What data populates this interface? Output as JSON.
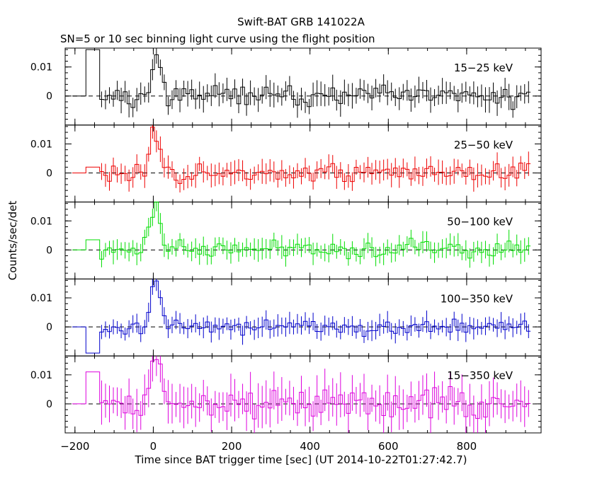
{
  "chart_data": {
    "type": "line",
    "title": "Swift-BAT GRB 141022A",
    "subtitle": "SN=5 or 10 sec binning light curve using the flight position",
    "xlabel": "Time since BAT trigger time [sec] (UT 2014-10-22T01:27:42.7)",
    "ylabel": "Counts/sec/det",
    "xlim": [
      -225,
      990
    ],
    "x_ticks": [
      -200,
      0,
      200,
      400,
      600,
      800
    ],
    "x_tick_labels": [
      "−200",
      "0",
      "200",
      "400",
      "600",
      "800"
    ],
    "ylim": [
      -0.01,
      0.0165
    ],
    "y_ticks": [
      0,
      0.01
    ],
    "y_tick_labels": [
      "0",
      "0.01"
    ],
    "zero_line": "dashed",
    "binning": {
      "pre_trigger": [
        [
          -207,
          -172
        ],
        [
          -172,
          -137
        ]
      ],
      "x_start": -137,
      "x_end": 960,
      "bin_width": 10
    },
    "series": [
      {
        "name": "15−25 keV",
        "color": "#000000",
        "pre_values": [
          0,
          0.016
        ],
        "seed": 11,
        "noise": 0.0028,
        "errbar": 0.0036,
        "peak_amp": 0.0125,
        "peak_pos": 8
      },
      {
        "name": "25−50 keV",
        "color": "#ee0000",
        "pre_values": [
          0,
          0.002
        ],
        "seed": 23,
        "noise": 0.0026,
        "errbar": 0.0034,
        "peak_amp": 0.014,
        "peak_pos": 6
      },
      {
        "name": "50−100 keV",
        "color": "#00dd00",
        "pre_values": [
          0,
          0.0035
        ],
        "seed": 37,
        "noise": 0.0024,
        "errbar": 0.0032,
        "peak_amp": 0.0165,
        "peak_pos": 6
      },
      {
        "name": "100−350 keV",
        "color": "#0000cc",
        "pre_values": [
          0,
          -0.009
        ],
        "seed": 53,
        "noise": 0.0022,
        "errbar": 0.003,
        "peak_amp": 0.015,
        "peak_pos": 6
      },
      {
        "name": "15−350 keV",
        "color": "#dd00dd",
        "pre_values": [
          0,
          0.011
        ],
        "seed": 71,
        "noise": 0.0042,
        "errbar": 0.006,
        "peak_amp": 0.017,
        "peak_pos": 6
      }
    ]
  }
}
